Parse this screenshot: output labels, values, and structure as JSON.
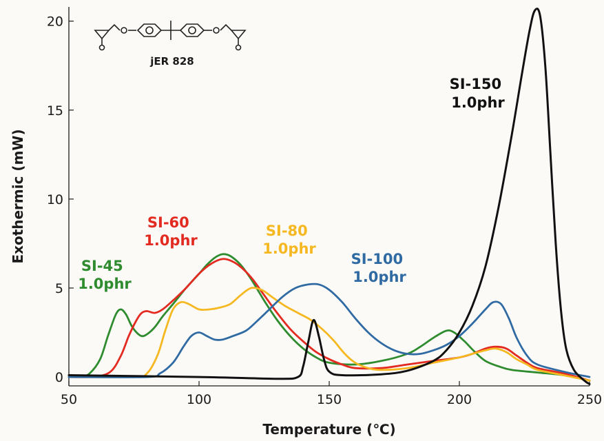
{
  "chart_data": {
    "type": "line",
    "xlabel": "Temperature (℃)",
    "ylabel": "Exothermic (mW)",
    "xlim": [
      50,
      250
    ],
    "ylim": [
      -0.5,
      20.8
    ],
    "xticks": [
      "50",
      "100",
      "150",
      "200",
      "250"
    ],
    "yticks": [
      "0",
      "5",
      "10",
      "15",
      "20"
    ],
    "grid": false,
    "inset_label": "jER 828",
    "series": [
      {
        "name": "SI-45 1.0phr",
        "label_lines": [
          "SI-45",
          "1.0phr"
        ],
        "color": "#2e8b2e",
        "points": [
          [
            50,
            0.0
          ],
          [
            55,
            0.05
          ],
          [
            58,
            0.2
          ],
          [
            62,
            1.0
          ],
          [
            65,
            2.3
          ],
          [
            68,
            3.5
          ],
          [
            70,
            3.8
          ],
          [
            72,
            3.5
          ],
          [
            74,
            2.9
          ],
          [
            76,
            2.5
          ],
          [
            78,
            2.3
          ],
          [
            80,
            2.4
          ],
          [
            83,
            2.8
          ],
          [
            86,
            3.4
          ],
          [
            90,
            4.1
          ],
          [
            95,
            5.0
          ],
          [
            100,
            5.8
          ],
          [
            103,
            6.3
          ],
          [
            106,
            6.7
          ],
          [
            109,
            6.9
          ],
          [
            112,
            6.8
          ],
          [
            116,
            6.3
          ],
          [
            120,
            5.5
          ],
          [
            125,
            4.3
          ],
          [
            130,
            3.2
          ],
          [
            135,
            2.3
          ],
          [
            140,
            1.6
          ],
          [
            145,
            1.1
          ],
          [
            150,
            0.8
          ],
          [
            160,
            0.7
          ],
          [
            170,
            0.9
          ],
          [
            180,
            1.3
          ],
          [
            185,
            1.7
          ],
          [
            190,
            2.2
          ],
          [
            195,
            2.6
          ],
          [
            198,
            2.5
          ],
          [
            202,
            2.0
          ],
          [
            206,
            1.4
          ],
          [
            210,
            0.9
          ],
          [
            215,
            0.6
          ],
          [
            220,
            0.4
          ],
          [
            230,
            0.25
          ],
          [
            240,
            0.1
          ],
          [
            250,
            -0.2
          ]
        ]
      },
      {
        "name": "SI-60 1.0phr",
        "label_lines": [
          "SI-60",
          "1.0phr"
        ],
        "color": "#e32a20",
        "points": [
          [
            50,
            0.0
          ],
          [
            60,
            0.02
          ],
          [
            66,
            0.3
          ],
          [
            70,
            1.2
          ],
          [
            73,
            2.3
          ],
          [
            76,
            3.2
          ],
          [
            78,
            3.6
          ],
          [
            80,
            3.7
          ],
          [
            83,
            3.6
          ],
          [
            86,
            3.8
          ],
          [
            90,
            4.3
          ],
          [
            95,
            5.0
          ],
          [
            100,
            5.8
          ],
          [
            104,
            6.3
          ],
          [
            108,
            6.6
          ],
          [
            111,
            6.6
          ],
          [
            115,
            6.3
          ],
          [
            120,
            5.6
          ],
          [
            125,
            4.6
          ],
          [
            130,
            3.6
          ],
          [
            135,
            2.7
          ],
          [
            140,
            2.0
          ],
          [
            145,
            1.4
          ],
          [
            150,
            1.0
          ],
          [
            155,
            0.7
          ],
          [
            160,
            0.5
          ],
          [
            170,
            0.5
          ],
          [
            180,
            0.7
          ],
          [
            190,
            0.9
          ],
          [
            200,
            1.1
          ],
          [
            205,
            1.3
          ],
          [
            210,
            1.6
          ],
          [
            214,
            1.7
          ],
          [
            218,
            1.6
          ],
          [
            222,
            1.2
          ],
          [
            226,
            0.8
          ],
          [
            230,
            0.5
          ],
          [
            240,
            0.2
          ],
          [
            250,
            -0.2
          ]
        ]
      },
      {
        "name": "SI-80 1.0phr",
        "label_lines": [
          "SI-80",
          "1.0phr"
        ],
        "color": "#f5b820",
        "points": [
          [
            50,
            0.0
          ],
          [
            75,
            0.0
          ],
          [
            80,
            0.2
          ],
          [
            84,
            1.2
          ],
          [
            87,
            2.6
          ],
          [
            90,
            3.8
          ],
          [
            93,
            4.2
          ],
          [
            96,
            4.1
          ],
          [
            100,
            3.8
          ],
          [
            104,
            3.8
          ],
          [
            108,
            3.9
          ],
          [
            112,
            4.1
          ],
          [
            116,
            4.6
          ],
          [
            120,
            5.0
          ],
          [
            124,
            4.9
          ],
          [
            128,
            4.5
          ],
          [
            133,
            4.0
          ],
          [
            138,
            3.6
          ],
          [
            143,
            3.2
          ],
          [
            148,
            2.6
          ],
          [
            152,
            2.0
          ],
          [
            156,
            1.3
          ],
          [
            160,
            0.8
          ],
          [
            165,
            0.5
          ],
          [
            170,
            0.4
          ],
          [
            180,
            0.5
          ],
          [
            190,
            0.8
          ],
          [
            200,
            1.1
          ],
          [
            205,
            1.3
          ],
          [
            210,
            1.5
          ],
          [
            214,
            1.6
          ],
          [
            218,
            1.4
          ],
          [
            222,
            1.0
          ],
          [
            226,
            0.7
          ],
          [
            230,
            0.4
          ],
          [
            240,
            0.1
          ],
          [
            250,
            -0.2
          ]
        ]
      },
      {
        "name": "SI-100 1.0phr",
        "label_lines": [
          "SI-100",
          "1.0phr"
        ],
        "color": "#2f6aa3",
        "points": [
          [
            50,
            0.0
          ],
          [
            80,
            0.0
          ],
          [
            85,
            0.2
          ],
          [
            90,
            0.8
          ],
          [
            94,
            1.7
          ],
          [
            97,
            2.3
          ],
          [
            100,
            2.5
          ],
          [
            103,
            2.3
          ],
          [
            106,
            2.1
          ],
          [
            109,
            2.1
          ],
          [
            113,
            2.3
          ],
          [
            118,
            2.6
          ],
          [
            122,
            3.1
          ],
          [
            127,
            3.8
          ],
          [
            132,
            4.5
          ],
          [
            137,
            5.0
          ],
          [
            142,
            5.2
          ],
          [
            146,
            5.2
          ],
          [
            150,
            4.9
          ],
          [
            155,
            4.2
          ],
          [
            160,
            3.3
          ],
          [
            165,
            2.5
          ],
          [
            170,
            1.9
          ],
          [
            175,
            1.5
          ],
          [
            180,
            1.3
          ],
          [
            185,
            1.3
          ],
          [
            190,
            1.5
          ],
          [
            195,
            1.8
          ],
          [
            200,
            2.3
          ],
          [
            205,
            3.0
          ],
          [
            210,
            3.8
          ],
          [
            213,
            4.2
          ],
          [
            216,
            4.1
          ],
          [
            219,
            3.3
          ],
          [
            222,
            2.2
          ],
          [
            226,
            1.2
          ],
          [
            230,
            0.7
          ],
          [
            240,
            0.3
          ],
          [
            250,
            0.0
          ]
        ]
      },
      {
        "name": "SI-150 1.0phr",
        "label_lines": [
          "SI-150",
          "1.0phr"
        ],
        "color": "#111111",
        "points": [
          [
            50,
            0.1
          ],
          [
            100,
            0.0
          ],
          [
            130,
            -0.1
          ],
          [
            138,
            0.0
          ],
          [
            140,
            0.6
          ],
          [
            142,
            2.0
          ],
          [
            144,
            3.2
          ],
          [
            146,
            2.3
          ],
          [
            148,
            1.0
          ],
          [
            150,
            0.3
          ],
          [
            155,
            0.1
          ],
          [
            170,
            0.15
          ],
          [
            180,
            0.35
          ],
          [
            190,
            0.9
          ],
          [
            195,
            1.5
          ],
          [
            200,
            2.5
          ],
          [
            205,
            4.0
          ],
          [
            210,
            6.2
          ],
          [
            215,
            9.5
          ],
          [
            220,
            13.5
          ],
          [
            224,
            17.0
          ],
          [
            227,
            19.5
          ],
          [
            229,
            20.6
          ],
          [
            231,
            20.3
          ],
          [
            233,
            17.5
          ],
          [
            235,
            12.5
          ],
          [
            237,
            7.5
          ],
          [
            239,
            3.8
          ],
          [
            241,
            1.6
          ],
          [
            244,
            0.4
          ],
          [
            248,
            -0.2
          ],
          [
            250,
            -0.4
          ]
        ]
      }
    ]
  }
}
